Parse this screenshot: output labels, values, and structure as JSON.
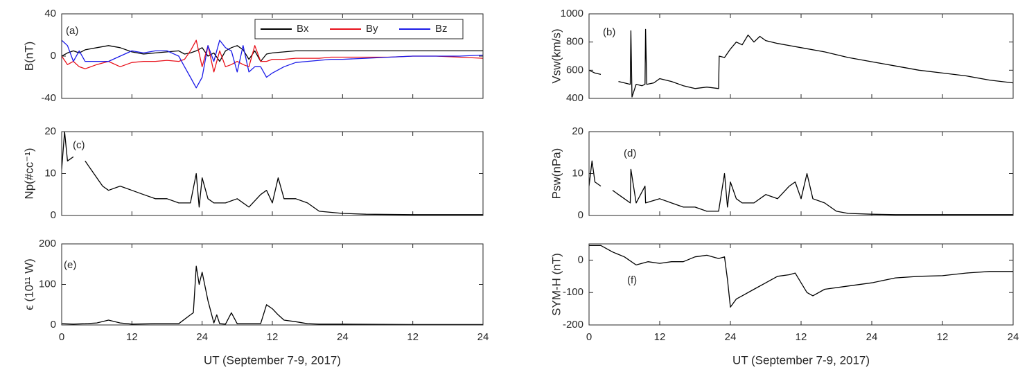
{
  "chart_data": [
    {
      "type": "line",
      "annotation": "(a)",
      "ylabel": "B(nT)",
      "legend": "top-right",
      "x": [
        0,
        1,
        2,
        3,
        4,
        6,
        8,
        10,
        12,
        14,
        16,
        18,
        20,
        21,
        22,
        23,
        24,
        25,
        26,
        27,
        28,
        29,
        30,
        31,
        32,
        33,
        34,
        35,
        36,
        38,
        40,
        42,
        44,
        46,
        48,
        52,
        56,
        60,
        64,
        68,
        72
      ],
      "series": [
        {
          "name": "Bx",
          "color": "#000000",
          "values": [
            0,
            3,
            5,
            3,
            6,
            8,
            10,
            8,
            4,
            2,
            3,
            4,
            5,
            2,
            3,
            5,
            8,
            0,
            3,
            -5,
            5,
            8,
            10,
            6,
            -3,
            5,
            -5,
            2,
            3,
            4,
            5,
            5,
            5,
            5,
            5,
            5,
            5,
            5,
            5,
            5,
            5
          ]
        },
        {
          "name": "By",
          "color": "#e8101a",
          "values": [
            0,
            -8,
            -5,
            -10,
            -12,
            -8,
            -5,
            -10,
            -6,
            -5,
            -5,
            -4,
            -5,
            -3,
            5,
            15,
            -10,
            10,
            -15,
            5,
            -10,
            -8,
            -5,
            -8,
            -10,
            10,
            -5,
            -5,
            -3,
            -3,
            -2,
            -2,
            -2,
            -1,
            -1,
            -1,
            -1,
            0,
            0,
            -1,
            -2
          ]
        },
        {
          "name": "Bz",
          "color": "#1a1ae8",
          "values": [
            15,
            10,
            -5,
            5,
            -5,
            -5,
            -5,
            0,
            5,
            3,
            5,
            5,
            0,
            -10,
            -20,
            -30,
            -20,
            10,
            -5,
            15,
            8,
            5,
            -15,
            10,
            -15,
            -10,
            -10,
            -20,
            -16,
            -10,
            -6,
            -5,
            -4,
            -3,
            -3,
            -2,
            -1,
            0,
            0,
            0,
            1
          ]
        }
      ],
      "xlim": [
        0,
        72
      ],
      "xticks": [
        0,
        12,
        24,
        36,
        48,
        60,
        72
      ],
      "ylim": [
        -40,
        40
      ],
      "yticks": [
        -40,
        0,
        40
      ]
    },
    {
      "type": "line",
      "annotation": "(b)",
      "ylabel": "Vsw(km/s)",
      "color": "#000000",
      "x": [
        0,
        1,
        2,
        3,
        4,
        5,
        6,
        7,
        7.1,
        7.3,
        8,
        9,
        9.5,
        9.6,
        9.8,
        11,
        12,
        14,
        16,
        18,
        20,
        22,
        22.1,
        23,
        24,
        25,
        26,
        27,
        28,
        29,
        30,
        32,
        36,
        40,
        44,
        48,
        52,
        56,
        60,
        64,
        68,
        72
      ],
      "values": [
        600,
        580,
        570,
        null,
        null,
        520,
        510,
        500,
        880,
        410,
        500,
        490,
        500,
        890,
        500,
        510,
        540,
        520,
        490,
        470,
        480,
        470,
        700,
        690,
        750,
        800,
        780,
        850,
        800,
        840,
        810,
        790,
        760,
        730,
        690,
        660,
        630,
        600,
        580,
        560,
        530,
        510
      ],
      "xlim": [
        0,
        72
      ],
      "xticks": [
        0,
        12,
        24,
        36,
        48,
        60,
        72
      ],
      "ylim": [
        400,
        1000
      ],
      "yticks": [
        400,
        600,
        800,
        1000
      ]
    },
    {
      "type": "line",
      "annotation": "(c)",
      "ylabel": "Np(#cc⁻¹)",
      "color": "#000000",
      "x": [
        0,
        0.5,
        1,
        2,
        3,
        4,
        5,
        6,
        7,
        8,
        10,
        12,
        14,
        16,
        18,
        20,
        22,
        23,
        23.5,
        24,
        25,
        26,
        28,
        30,
        32,
        34,
        35,
        36,
        37,
        38,
        40,
        42,
        44,
        48,
        52,
        60,
        72
      ],
      "values": [
        11,
        20,
        13,
        14,
        null,
        13,
        11,
        9,
        7,
        6,
        7,
        6,
        5,
        4,
        4,
        3,
        3,
        10,
        2,
        9,
        4,
        3,
        3,
        4,
        2,
        5,
        6,
        3,
        9,
        4,
        4,
        3,
        1,
        0.5,
        0.3,
        0.2,
        0.2
      ],
      "xlim": [
        0,
        72
      ],
      "xticks": [
        0,
        12,
        24,
        36,
        48,
        60,
        72
      ],
      "ylim": [
        0,
        20
      ],
      "yticks": [
        0,
        10,
        20
      ]
    },
    {
      "type": "line",
      "annotation": "(d)",
      "ylabel": "Psw(nPa)",
      "color": "#000000",
      "x": [
        0,
        0.5,
        1,
        2,
        3,
        4,
        5,
        6,
        7,
        7.1,
        8,
        9.5,
        9.6,
        12,
        14,
        16,
        18,
        20,
        22,
        23,
        23.5,
        24,
        25,
        26,
        28,
        30,
        32,
        34,
        35,
        36,
        37,
        38,
        40,
        42,
        44,
        48,
        52,
        60,
        72
      ],
      "values": [
        7,
        13,
        8,
        7,
        null,
        6,
        5,
        4,
        3,
        11,
        3,
        7,
        3,
        4,
        3,
        2,
        2,
        1,
        1,
        10,
        2,
        8,
        4,
        3,
        3,
        5,
        4,
        7,
        8,
        4,
        10,
        4,
        3,
        1,
        0.5,
        0.3,
        0.2,
        0.2,
        0.2
      ],
      "xlim": [
        0,
        72
      ],
      "xticks": [
        0,
        12,
        24,
        36,
        48,
        60,
        72
      ],
      "ylim": [
        0,
        20
      ],
      "yticks": [
        0,
        10,
        20
      ]
    },
    {
      "type": "line",
      "annotation": "(e)",
      "ylabel": "ϵ (10¹¹ W)",
      "xlabel": "UT (September 7-9, 2017)",
      "color": "#000000",
      "x": [
        0,
        2,
        4,
        6,
        8,
        10,
        12,
        16,
        20,
        22,
        22.5,
        23,
        23.5,
        24,
        25,
        26,
        26.5,
        27,
        28,
        29,
        30,
        31,
        34,
        35,
        36,
        37,
        38,
        40,
        42,
        44,
        48,
        60,
        72
      ],
      "values": [
        3,
        2,
        3,
        5,
        12,
        5,
        2,
        3,
        3,
        25,
        30,
        145,
        100,
        130,
        60,
        5,
        25,
        3,
        2,
        30,
        3,
        3,
        3,
        50,
        40,
        25,
        12,
        8,
        3,
        2,
        2,
        1,
        1
      ],
      "xlim": [
        0,
        72
      ],
      "xticks": [
        {
          "value": 0,
          "label": "0"
        },
        {
          "value": 12,
          "label": "12"
        },
        {
          "value": 24,
          "label": "24"
        },
        {
          "value": 36,
          "label": "12"
        },
        {
          "value": 48,
          "label": "24"
        },
        {
          "value": 60,
          "label": "12"
        },
        {
          "value": 72,
          "label": "24"
        }
      ],
      "ylim": [
        0,
        200
      ],
      "yticks": [
        0,
        100,
        200
      ]
    },
    {
      "type": "line",
      "annotation": "(f)",
      "ylabel": "SYM-H (nT)",
      "xlabel": "UT (September 7-9, 2017)",
      "color": "#000000",
      "x": [
        0,
        2,
        4,
        6,
        8,
        10,
        12,
        14,
        16,
        18,
        20,
        22,
        23,
        23.5,
        24,
        25,
        26,
        28,
        30,
        32,
        34,
        35,
        36,
        37,
        38,
        40,
        44,
        48,
        52,
        56,
        60,
        64,
        68,
        72
      ],
      "values": [
        45,
        45,
        25,
        10,
        -15,
        -5,
        -10,
        -5,
        -5,
        10,
        15,
        5,
        10,
        -60,
        -145,
        -120,
        -110,
        -90,
        -70,
        -50,
        -45,
        -40,
        -70,
        -100,
        -110,
        -90,
        -80,
        -70,
        -55,
        -50,
        -48,
        -40,
        -35,
        -35
      ],
      "xlim": [
        0,
        72
      ],
      "xticks": [
        {
          "value": 0,
          "label": "0"
        },
        {
          "value": 12,
          "label": "12"
        },
        {
          "value": 24,
          "label": "24"
        },
        {
          "value": 36,
          "label": "12"
        },
        {
          "value": 48,
          "label": "24"
        },
        {
          "value": 60,
          "label": "12"
        },
        {
          "value": 72,
          "label": "24"
        }
      ],
      "ylim": [
        -200,
        50
      ],
      "yticks": [
        -200,
        -100,
        0
      ]
    }
  ]
}
